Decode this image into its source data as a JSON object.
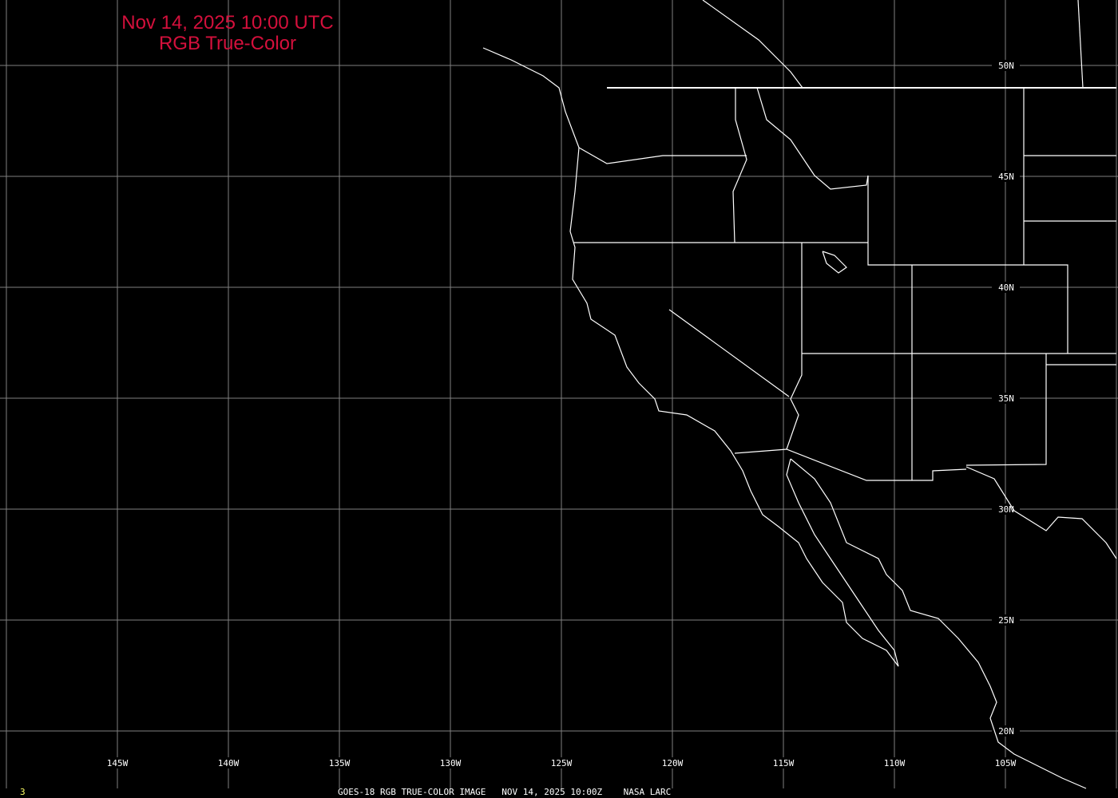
{
  "title": {
    "line1": "Nov 14, 2025 10:00 UTC",
    "line2": "RGB True-Color",
    "color": "#d4103c"
  },
  "grid": {
    "longitudes": [
      "145W",
      "140W",
      "135W",
      "130W",
      "125W",
      "120W",
      "115W",
      "110W",
      "105W"
    ],
    "latitudes": [
      "50N",
      "45N",
      "40N",
      "35N",
      "30N",
      "25N",
      "20N"
    ],
    "color": "#808080"
  },
  "footer": {
    "frame_number": "3",
    "caption": "GOES-18 RGB TRUE-COLOR IMAGE   NOV 14, 2025 10:00Z    NASA LARC"
  }
}
